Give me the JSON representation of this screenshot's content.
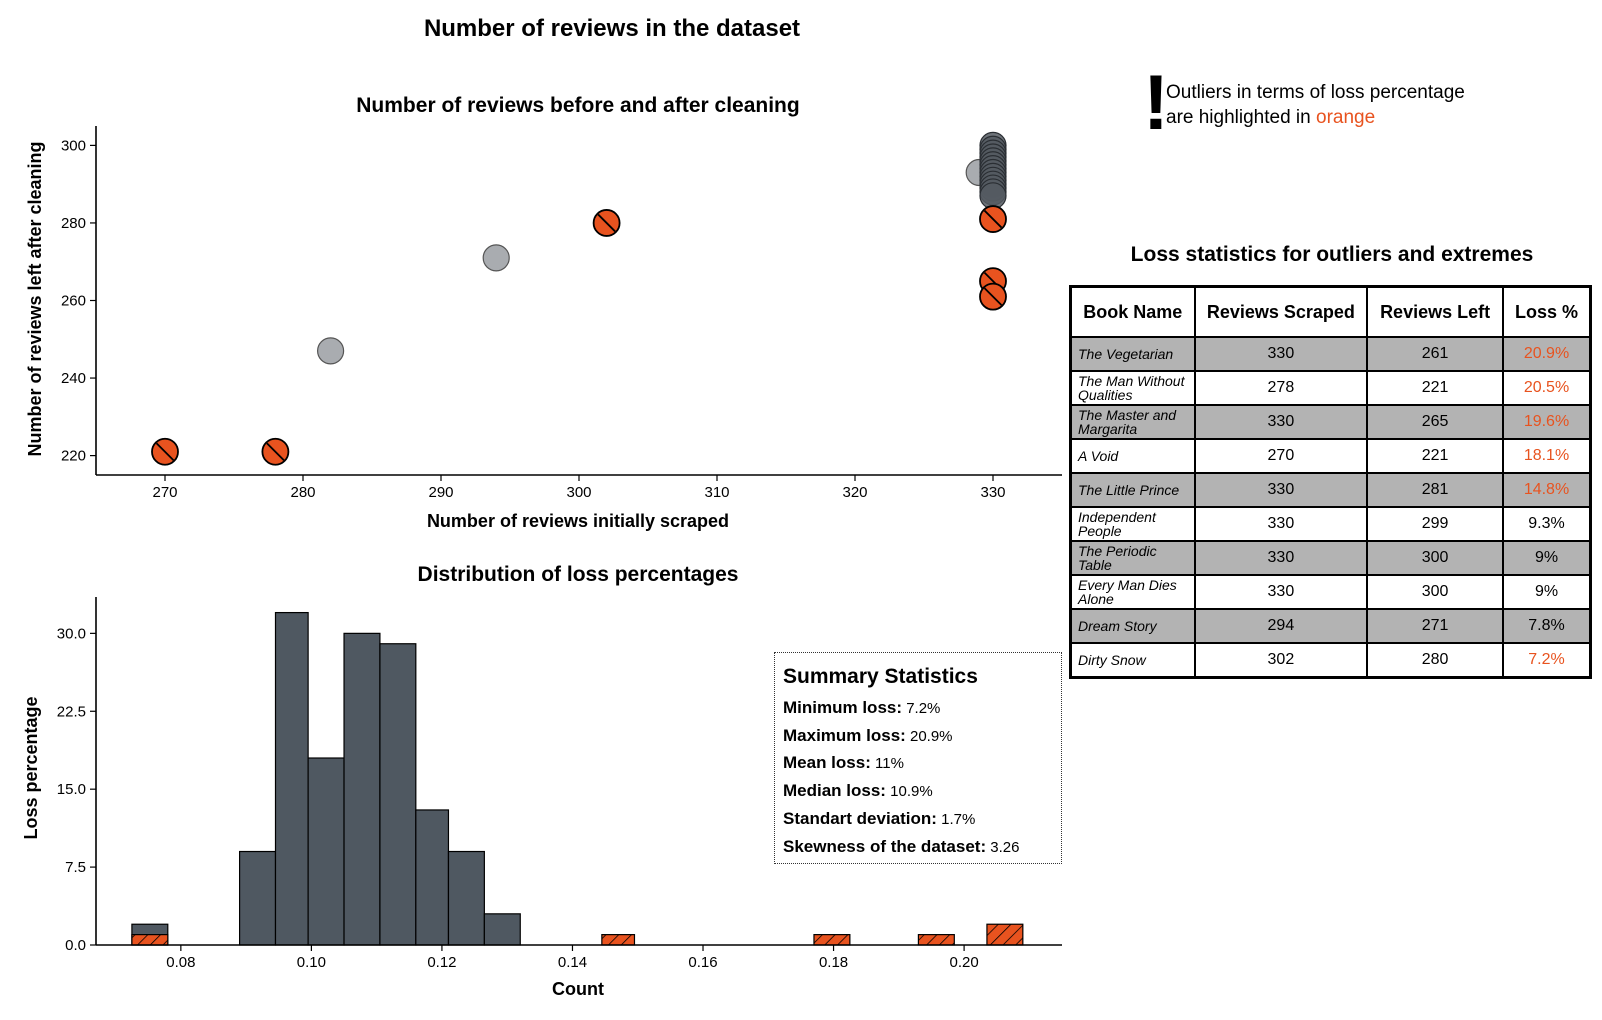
{
  "figure": {
    "title": "Number of reviews in the dataset"
  },
  "colors": {
    "outlier": "#e8531f",
    "normal_scatter": "#a9acb0",
    "dense_scatter": "#555b62",
    "histogram": "#4f5861"
  },
  "note": {
    "icon": "exclamation-icon",
    "line1": "Outliers in terms of loss percentage",
    "line2_prefix": "are highlighted in",
    "line2_highlight": "orange"
  },
  "chart_data": [
    {
      "type": "scatter",
      "title": "Number of reviews before and after cleaning",
      "xlabel": "Number of reviews initially scraped",
      "ylabel": "Number of reviews left after cleaning",
      "xlim": [
        265,
        335
      ],
      "ylim": [
        215,
        305
      ],
      "xticks": [
        "270",
        "280",
        "290",
        "300",
        "310",
        "320",
        "330"
      ],
      "yticks": [
        "220",
        "240",
        "260",
        "280",
        "300"
      ],
      "grid": false,
      "series": [
        {
          "points": [
            [
              282,
              247
            ],
            [
              294,
              271
            ],
            [
              329,
              293
            ]
          ]
        },
        {
          "points": [
            [
              330,
              300
            ],
            [
              330,
              299
            ],
            [
              330,
              298
            ],
            [
              330,
              297
            ],
            [
              330,
              296
            ],
            [
              330,
              295
            ],
            [
              330,
              294
            ],
            [
              330,
              293
            ],
            [
              330,
              292
            ],
            [
              330,
              291
            ],
            [
              330,
              290
            ],
            [
              330,
              289
            ],
            [
              330,
              288
            ],
            [
              330,
              287
            ]
          ]
        },
        {
          "points": [
            [
              270,
              221
            ],
            [
              278,
              221
            ],
            [
              302,
              280
            ],
            [
              330,
              281
            ],
            [
              330,
              265
            ],
            [
              330,
              261
            ]
          ]
        }
      ]
    },
    {
      "type": "bar",
      "title": "Distribution of loss percentages",
      "xlabel": "Count",
      "ylabel": "Loss percentage",
      "xlim": [
        0.067,
        0.215
      ],
      "ylim": [
        0,
        33.5
      ],
      "xticks": [
        "0.08",
        "0.10",
        "0.12",
        "0.14",
        "0.16",
        "0.18",
        "0.20"
      ],
      "yticks": [
        "0.0",
        "7.5",
        "15.0",
        "22.5",
        "30.0"
      ],
      "grid": false,
      "series": [
        {
          "bins": [
            [
              0.0725,
              0.078,
              2
            ],
            [
              0.089,
              0.0945,
              9
            ],
            [
              0.0945,
              0.0995,
              32
            ],
            [
              0.0995,
              0.105,
              18
            ],
            [
              0.105,
              0.1105,
              30
            ],
            [
              0.1105,
              0.116,
              29
            ],
            [
              0.116,
              0.121,
              13
            ],
            [
              0.121,
              0.1265,
              9
            ],
            [
              0.1265,
              0.132,
              3
            ]
          ]
        },
        {
          "bins": [
            [
              0.0725,
              0.078,
              1
            ],
            [
              0.1445,
              0.1495,
              1
            ],
            [
              0.177,
              0.1825,
              1
            ],
            [
              0.193,
              0.1985,
              1
            ],
            [
              0.2035,
              0.209,
              2
            ]
          ]
        }
      ]
    }
  ],
  "summary": {
    "title": "Summary Statistics",
    "rows": [
      {
        "label": "Minimum loss:",
        "value": "7.2%"
      },
      {
        "label": "Maximum loss:",
        "value": "20.9%"
      },
      {
        "label": "Mean loss:",
        "value": "11%"
      },
      {
        "label": "Median loss:",
        "value": "10.9%"
      },
      {
        "label": "Standart deviation:",
        "value": "1.7%"
      },
      {
        "label": "Skewness of the dataset:",
        "value": "3.26"
      }
    ]
  },
  "table": {
    "title": "Loss statistics for outliers and extremes",
    "headers": [
      "Book Name",
      "Reviews Scraped",
      "Reviews Left",
      "Loss %"
    ],
    "rows": [
      {
        "book": "The Vegetarian",
        "scraped": "330",
        "left": "261",
        "loss": "20.9%",
        "highlight": true,
        "shade": true
      },
      {
        "book": "The Man Without Qualities",
        "scraped": "278",
        "left": "221",
        "loss": "20.5%",
        "highlight": true,
        "shade": false
      },
      {
        "book": "The Master and Margarita",
        "scraped": "330",
        "left": "265",
        "loss": "19.6%",
        "highlight": true,
        "shade": true
      },
      {
        "book": "A Void",
        "scraped": "270",
        "left": "221",
        "loss": "18.1%",
        "highlight": true,
        "shade": false
      },
      {
        "book": "The Little Prince",
        "scraped": "330",
        "left": "281",
        "loss": "14.8%",
        "highlight": true,
        "shade": true
      },
      {
        "book": "Independent People",
        "scraped": "330",
        "left": "299",
        "loss": "9.3%",
        "highlight": false,
        "shade": false
      },
      {
        "book": "The Periodic Table",
        "scraped": "330",
        "left": "300",
        "loss": "9%",
        "highlight": false,
        "shade": true
      },
      {
        "book": "Every Man Dies Alone",
        "scraped": "330",
        "left": "300",
        "loss": "9%",
        "highlight": false,
        "shade": false
      },
      {
        "book": "Dream Story",
        "scraped": "294",
        "left": "271",
        "loss": "7.8%",
        "highlight": false,
        "shade": true
      },
      {
        "book": "Dirty Snow",
        "scraped": "302",
        "left": "280",
        "loss": "7.2%",
        "highlight": true,
        "shade": false
      }
    ]
  }
}
